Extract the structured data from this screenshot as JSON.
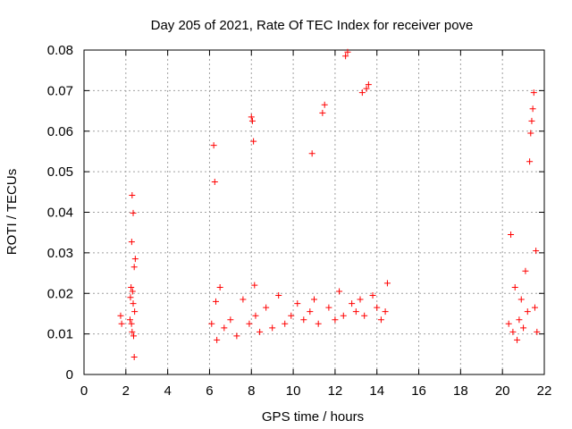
{
  "chart_data": {
    "type": "scatter",
    "title": "Day 205 of 2021, Rate Of TEC Index for receiver pove",
    "xlabel": "GPS time / hours",
    "ylabel": "ROTI / TECUs",
    "xlim": [
      0,
      22
    ],
    "ylim": [
      0,
      0.08
    ],
    "xticks": [
      0,
      2,
      4,
      6,
      8,
      10,
      12,
      14,
      16,
      18,
      20,
      22
    ],
    "yticks": [
      0,
      0.01,
      0.02,
      0.03,
      0.04,
      0.05,
      0.06,
      0.07,
      0.08
    ],
    "ytick_labels": [
      "0",
      "0.01",
      "0.02",
      "0.03",
      "0.04",
      "0.05",
      "0.06",
      "0.07",
      "0.08"
    ],
    "grid": true,
    "marker": "+",
    "color": "#ff0000",
    "series": [
      {
        "x": [
          1.75,
          1.8,
          2.2,
          2.22,
          2.25,
          2.27,
          2.3,
          2.32,
          2.35,
          2.37,
          2.4,
          2.42,
          2.45,
          2.3,
          2.35,
          2.28,
          2.4
        ],
        "y": [
          0.0145,
          0.0125,
          0.0135,
          0.019,
          0.0215,
          0.0125,
          0.0105,
          0.0205,
          0.0175,
          0.0095,
          0.0265,
          0.0155,
          0.0285,
          0.0442,
          0.0398,
          0.0327,
          0.0043
        ]
      },
      {
        "x": [
          6.1,
          6.2,
          6.25,
          6.3,
          6.35,
          6.5,
          6.7,
          7.0,
          7.3,
          7.6,
          7.9,
          8.0,
          8.05,
          8.1,
          8.15,
          8.2,
          8.4,
          8.7,
          9.0,
          9.3,
          9.6,
          9.9,
          10.2,
          10.5,
          10.8,
          10.9,
          11.0,
          11.2,
          11.4,
          11.5,
          11.7,
          12.0,
          12.2,
          12.4,
          12.5,
          12.6,
          12.8,
          13.0,
          13.2,
          13.3,
          13.4,
          13.5,
          13.6,
          13.8,
          14.0,
          14.2,
          14.4,
          14.5
        ],
        "y": [
          0.0125,
          0.0565,
          0.0475,
          0.018,
          0.0085,
          0.0215,
          0.0115,
          0.0135,
          0.0095,
          0.0185,
          0.0125,
          0.0635,
          0.0625,
          0.0575,
          0.022,
          0.0145,
          0.0105,
          0.0165,
          0.0115,
          0.0195,
          0.0125,
          0.0145,
          0.0175,
          0.0135,
          0.0155,
          0.0545,
          0.0185,
          0.0125,
          0.0645,
          0.0665,
          0.0165,
          0.0135,
          0.0205,
          0.0145,
          0.0785,
          0.0795,
          0.0175,
          0.0155,
          0.0185,
          0.0695,
          0.0145,
          0.0705,
          0.0715,
          0.0195,
          0.0165,
          0.0135,
          0.0155,
          0.0225
        ]
      },
      {
        "x": [
          20.3,
          20.4,
          20.5,
          20.6,
          20.7,
          20.8,
          20.9,
          21.0,
          21.1,
          21.2,
          21.3,
          21.35,
          21.4,
          21.45,
          21.5,
          21.55,
          21.6,
          21.65
        ],
        "y": [
          0.0125,
          0.0345,
          0.0105,
          0.0215,
          0.0085,
          0.0135,
          0.0185,
          0.0115,
          0.0255,
          0.0155,
          0.0525,
          0.0595,
          0.0625,
          0.0655,
          0.0695,
          0.0165,
          0.0305,
          0.0105
        ]
      }
    ]
  }
}
